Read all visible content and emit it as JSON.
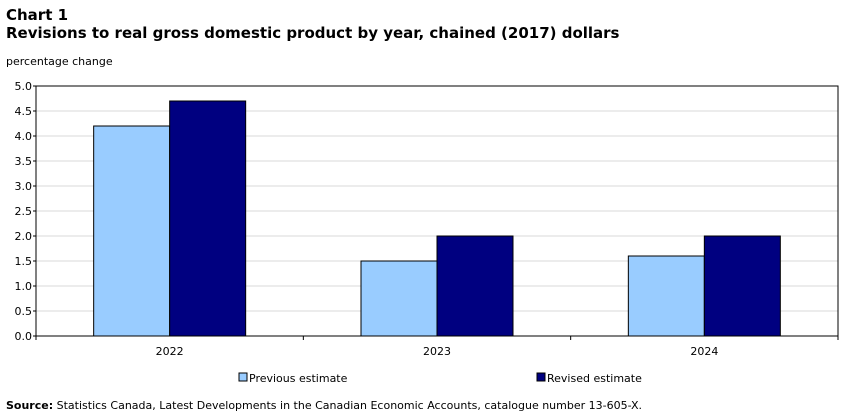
{
  "header": {
    "chart_number": "Chart 1",
    "chart_title": "Revisions to real gross domestic product by year, chained (2017) dollars"
  },
  "unit_label": "percentage change",
  "source": {
    "label": "Source:",
    "text": "Statistics Canada, Latest Developments in the Canadian Economic Accounts, catalogue number 13-605-X."
  },
  "colors": {
    "previous": "#99ccff",
    "revised": "#000080",
    "grid": "#d9d9d9",
    "axis": "#000000"
  },
  "chart_data": {
    "type": "bar",
    "title": "Revisions to real gross domestic product by year, chained (2017) dollars",
    "ylabel": "percentage change",
    "xlabel": "",
    "categories": [
      "2022",
      "2023",
      "2024"
    ],
    "series": [
      {
        "name": "Previous estimate",
        "values": [
          4.2,
          1.5,
          1.6
        ]
      },
      {
        "name": "Revised estimate",
        "values": [
          4.7,
          2.0,
          2.0
        ]
      }
    ],
    "ylim": [
      0,
      5
    ],
    "yticks": [
      "0.0",
      "0.5",
      "1.0",
      "1.5",
      "2.0",
      "2.5",
      "3.0",
      "3.5",
      "4.0",
      "4.5",
      "5.0"
    ],
    "grid": true,
    "legend_position": "bottom"
  }
}
